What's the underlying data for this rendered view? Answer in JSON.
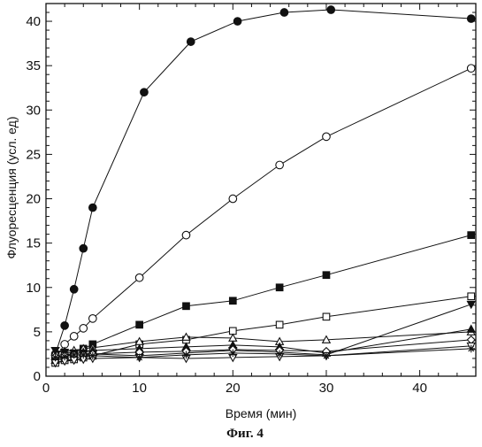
{
  "chart_data": {
    "type": "line",
    "xlabel": "Время (мин)",
    "ylabel": "Флуоресценция (усл. ед)",
    "caption": "Фиг. 4",
    "xlim": [
      0,
      46
    ],
    "ylim": [
      0,
      42
    ],
    "xticks": [
      0,
      10,
      20,
      30,
      40
    ],
    "yticks": [
      0,
      5,
      10,
      15,
      20,
      25,
      30,
      35,
      40
    ],
    "grid": false,
    "legend": "none",
    "series": [
      {
        "marker": "filled-circle",
        "x": [
          1,
          2,
          3,
          4,
          5,
          10.5,
          15.5,
          20.5,
          25.5,
          30.5,
          45.5
        ],
        "y": [
          2.5,
          5.7,
          9.8,
          14.4,
          19,
          32,
          37.7,
          40,
          41,
          41.3,
          40.3
        ]
      },
      {
        "marker": "open-circle",
        "x": [
          1,
          2,
          3,
          4,
          5,
          10,
          15,
          20,
          25,
          30,
          45.5
        ],
        "y": [
          2,
          3.6,
          4.5,
          5.4,
          6.5,
          11.1,
          15.9,
          20,
          23.8,
          27,
          34.7
        ]
      },
      {
        "marker": "filled-square",
        "x": [
          1,
          2,
          3,
          4,
          5,
          10,
          15,
          20,
          25,
          30,
          45.5
        ],
        "y": [
          2.3,
          2.3,
          2.6,
          3.1,
          3.6,
          5.8,
          7.9,
          8.5,
          10,
          11.4,
          15.9
        ]
      },
      {
        "marker": "open-square",
        "x": [
          1,
          2,
          3,
          4,
          5,
          10,
          15,
          20,
          25,
          30,
          45.5
        ],
        "y": [
          1.5,
          1.8,
          1.9,
          2.1,
          2.3,
          3.6,
          4.1,
          5.1,
          5.8,
          6.7,
          9
        ]
      },
      {
        "marker": "open-triangle-up",
        "x": [
          1,
          2,
          3,
          4,
          5,
          10,
          15,
          20,
          25,
          30,
          45.5
        ],
        "y": [
          2.7,
          2.8,
          2.9,
          3.1,
          3.2,
          3.9,
          4.4,
          4.3,
          3.9,
          4.1,
          5
        ]
      },
      {
        "marker": "filled-triangle-down",
        "x": [
          1,
          2,
          3,
          4,
          5,
          10,
          15,
          20,
          25,
          30,
          45.5
        ],
        "y": [
          2.9,
          2.7,
          2.6,
          2.6,
          2.5,
          2.3,
          2.6,
          2.9,
          2.7,
          2.4,
          8.1
        ]
      },
      {
        "marker": "filled-triangle-up",
        "x": [
          1,
          2,
          3,
          4,
          5,
          10,
          15,
          20,
          25,
          30,
          45.5
        ],
        "y": [
          1.8,
          2.2,
          2.5,
          2.7,
          2.9,
          3.1,
          3.3,
          3.5,
          3.3,
          2.6,
          5.3
        ]
      },
      {
        "marker": "open-diamond",
        "x": [
          1,
          2,
          3,
          4,
          5,
          10,
          15,
          20,
          25,
          30,
          45.5
        ],
        "y": [
          2.2,
          2.3,
          2.4,
          2.4,
          2.5,
          2.7,
          2.8,
          3,
          2.9,
          2.8,
          4.1
        ]
      },
      {
        "marker": "open-triangle-down",
        "x": [
          1,
          2,
          3,
          4,
          5,
          10,
          15,
          20,
          25,
          30,
          45.5
        ],
        "y": [
          1.5,
          1.7,
          1.8,
          1.9,
          2,
          2.1,
          2,
          2.1,
          2.2,
          2.3,
          3.4
        ]
      },
      {
        "marker": "star",
        "x": [
          1,
          2,
          3,
          4,
          5,
          10,
          15,
          20,
          25,
          30,
          45.5
        ],
        "y": [
          2.1,
          2.2,
          2.4,
          2.4,
          2.3,
          2.1,
          2.4,
          2.6,
          2.5,
          2.3,
          3.1
        ]
      }
    ]
  }
}
